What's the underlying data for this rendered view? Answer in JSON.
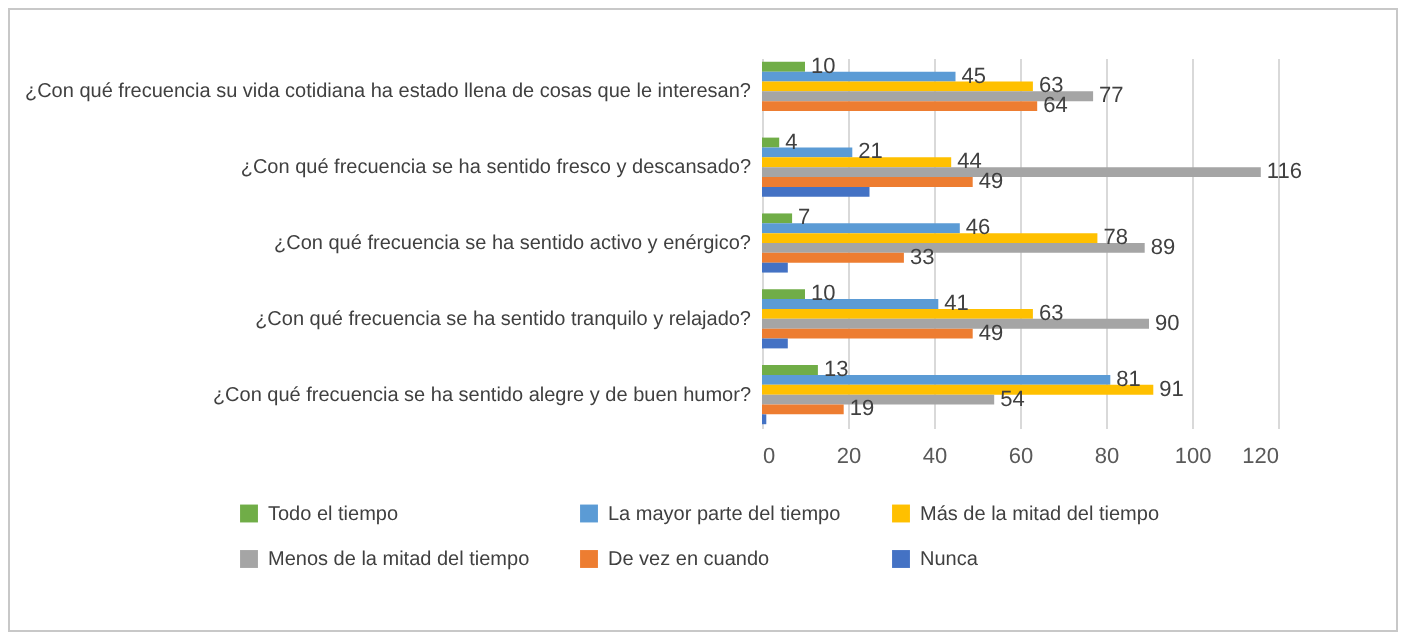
{
  "chart_data": {
    "type": "bar",
    "orientation": "horizontal",
    "categories": [
      "¿Con qué frecuencia su vida cotidiana ha estado llena de cosas que le interesan?",
      "¿Con qué frecuencia se ha sentido fresco y descansado?",
      "¿Con qué frecuencia se ha sentido activo y enérgico?",
      "¿Con qué frecuencia se ha sentido tranquilo y relajado?",
      "¿Con qué frecuencia se ha sentido alegre y de buen humor?"
    ],
    "series": [
      {
        "name": "Todo el tiempo",
        "color": "#70ad47",
        "values": [
          10,
          4,
          7,
          10,
          13
        ],
        "value_labels": [
          "10",
          "4",
          "7",
          "10",
          "13"
        ]
      },
      {
        "name": "La mayor parte del tiempo",
        "color": "#5b9bd5",
        "values": [
          45,
          21,
          46,
          41,
          81
        ],
        "value_labels": [
          "45",
          "21",
          "46",
          "41",
          "81"
        ]
      },
      {
        "name": "Más de la mitad del tiempo",
        "color": "#ffc000",
        "values": [
          63,
          44,
          78,
          63,
          91
        ],
        "value_labels": [
          "63",
          "44",
          "78",
          "63",
          "91"
        ]
      },
      {
        "name": "Menos de la mitad del tiempo",
        "color": "#a5a5a5",
        "values": [
          77,
          116,
          89,
          90,
          54
        ],
        "value_labels": [
          "77",
          "116",
          "89",
          "90",
          "54"
        ]
      },
      {
        "name": "De vez en cuando",
        "color": "#ed7d31",
        "values": [
          64,
          49,
          33,
          49,
          19
        ],
        "value_labels": [
          "64",
          "49",
          "33",
          "49",
          "19"
        ]
      },
      {
        "name": "Nunca",
        "color": "#4472c4",
        "values": [
          0,
          25,
          6,
          6,
          1
        ],
        "value_labels": [
          null,
          null,
          null,
          null,
          null
        ]
      }
    ],
    "xlim": [
      0,
      120
    ],
    "xticks": [
      0,
      20,
      40,
      60,
      80,
      100,
      120
    ],
    "grid": "x",
    "legend": "bottom"
  }
}
